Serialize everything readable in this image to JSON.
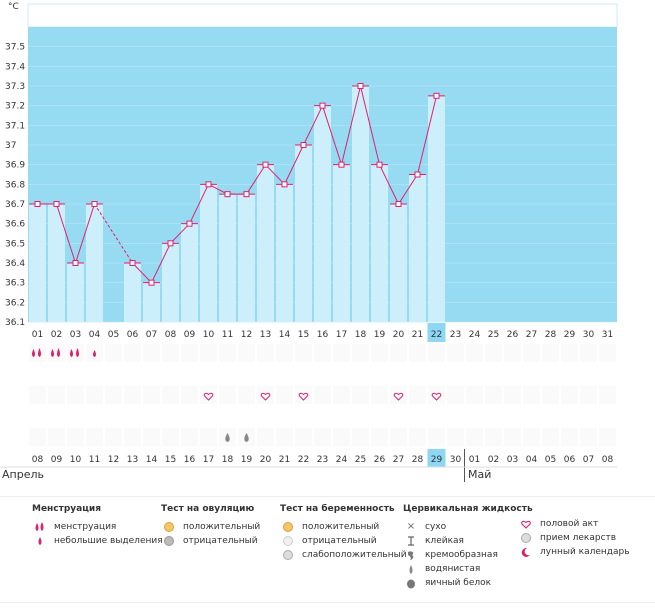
{
  "unit": "°C",
  "chart_data": {
    "type": "line",
    "ylim": [
      36.1,
      37.6
    ],
    "y_ticks": [
      "37.5",
      "37.4",
      "37.3",
      "37.2",
      "37.1",
      "37",
      "36.9",
      "36.8",
      "36.7",
      "36.6",
      "36.5",
      "36.4",
      "36.3",
      "36.2",
      "36.1"
    ],
    "x": [
      "01",
      "02",
      "03",
      "04",
      "05",
      "06",
      "07",
      "08",
      "09",
      "10",
      "11",
      "12",
      "13",
      "14",
      "15",
      "16",
      "17",
      "18",
      "19",
      "20",
      "21",
      "22",
      "23",
      "24",
      "25",
      "26",
      "27",
      "28",
      "29",
      "30",
      "31"
    ],
    "series": [
      {
        "values": [
          36.7,
          36.7,
          36.4,
          36.7,
          null,
          36.4,
          36.3,
          36.5,
          36.6,
          36.8,
          36.75,
          36.75,
          36.9,
          36.8,
          37.0,
          37.2,
          36.9,
          37.3,
          36.9,
          36.7,
          36.85,
          37.25,
          null,
          null,
          null,
          null,
          null,
          null,
          null,
          null,
          null
        ]
      }
    ],
    "highlighted_day": "22",
    "calendar_dates": [
      "08",
      "09",
      "10",
      "11",
      "12",
      "13",
      "14",
      "15",
      "16",
      "17",
      "18",
      "19",
      "20",
      "21",
      "22",
      "23",
      "24",
      "25",
      "26",
      "27",
      "28",
      "29",
      "30",
      "01",
      "02",
      "03",
      "04",
      "05",
      "06",
      "07",
      "08"
    ],
    "calendar_red_indices": [
      4,
      5,
      11,
      12,
      18,
      19,
      25,
      26
    ],
    "calendar_highlighted_index": 21,
    "months": [
      "Апрель",
      "Май"
    ],
    "markers": {
      "menstruation_heavy": [
        0,
        1,
        2
      ],
      "menstruation_light": [
        3
      ],
      "intercourse": [
        9,
        12,
        14,
        19,
        21
      ],
      "watery": [
        10,
        11
      ]
    }
  },
  "colors": {
    "plot_bg": "#97dbf2",
    "bar_fill": "#cdeefb",
    "bar_edge": "#6fc3e4",
    "line": "#e0206d",
    "highlight": "#8dd7f5",
    "red_date": "#e0206d"
  },
  "legend": {
    "menstruation": {
      "title": "Менструация",
      "items": [
        {
          "icon": "drops-icon",
          "label": "менструация"
        },
        {
          "icon": "drop-icon",
          "label": "небольшие выделения"
        }
      ]
    },
    "ovulation": {
      "title": "Тест на овуляцию",
      "items": [
        {
          "icon": "positive-test-icon",
          "label": "положительный"
        },
        {
          "icon": "negative-test-icon",
          "label": "отрицательный"
        }
      ]
    },
    "pregnancy": {
      "title": "Тест на беременность",
      "items": [
        {
          "icon": "positive-test-icon",
          "label": "положительный"
        },
        {
          "icon": "negative-test-icon",
          "label": "отрицательный"
        },
        {
          "icon": "weak-positive-test-icon",
          "label": "слабоположительный"
        }
      ]
    },
    "cervical": {
      "title": "Цервикальная жидкость",
      "items": [
        {
          "icon": "x-icon",
          "label": "сухо"
        },
        {
          "icon": "t-icon",
          "label": "клейкая"
        },
        {
          "icon": "creamy-icon",
          "label": "кремообразная"
        },
        {
          "icon": "watery-icon",
          "label": "водянистая"
        },
        {
          "icon": "egg-white-icon",
          "label": "яичный белок"
        }
      ]
    },
    "other": {
      "items": [
        {
          "icon": "heart-icon",
          "label": "половой акт"
        },
        {
          "icon": "pill-icon",
          "label": "прием лекарств"
        },
        {
          "icon": "moon-icon",
          "label": "лунный календарь"
        }
      ]
    }
  }
}
